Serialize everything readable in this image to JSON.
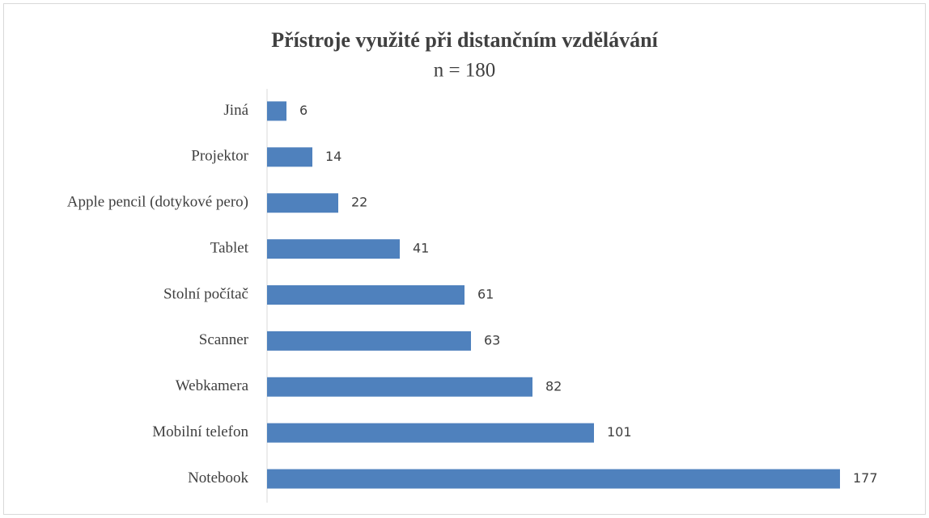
{
  "chart_data": {
    "type": "bar",
    "orientation": "horizontal",
    "title": "Přístroje využité při distančním vzdělávání",
    "subtitle": "n = 180",
    "categories": [
      "Jiná",
      "Projektor",
      "Apple pencil (dotykové pero)",
      "Tablet",
      "Stolní počítač",
      "Scanner",
      "Webkamera",
      "Mobilní telefon",
      "Notebook"
    ],
    "values": [
      6,
      14,
      22,
      41,
      61,
      63,
      82,
      101,
      177
    ],
    "color": "#4f81bd"
  }
}
